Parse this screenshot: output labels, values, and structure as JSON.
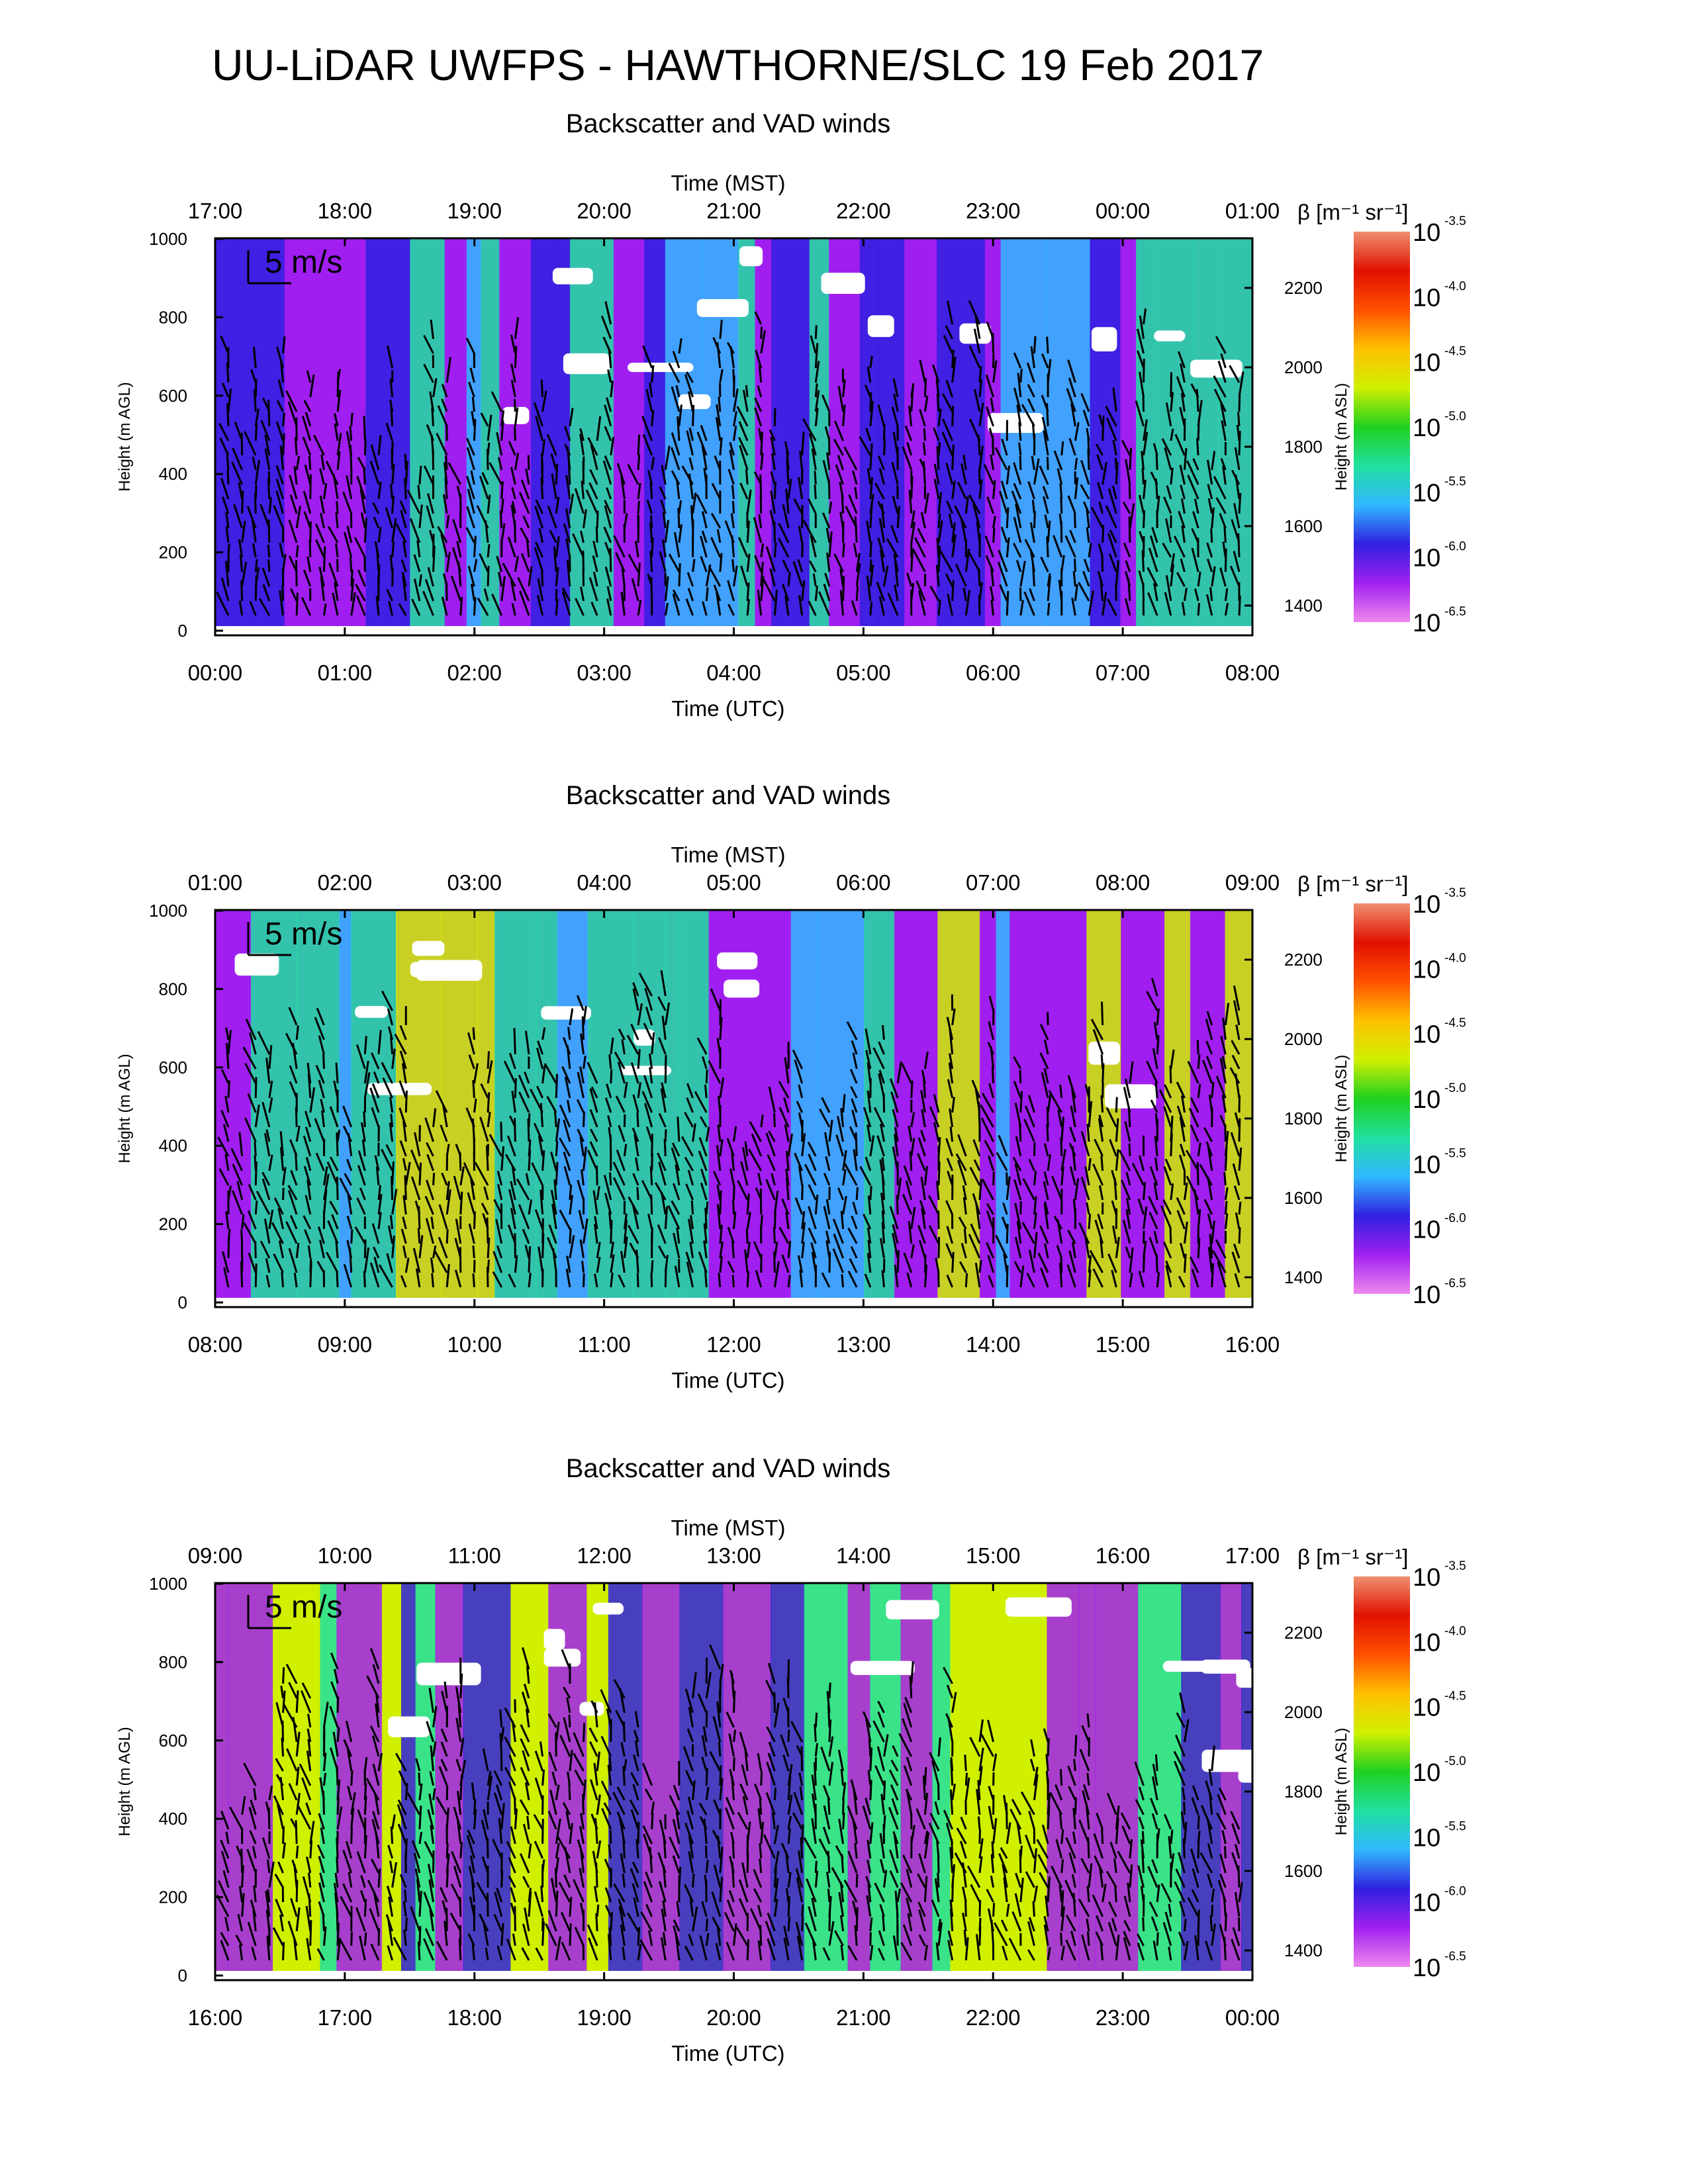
{
  "title": "UU-LiDAR UWFPS - HAWTHORNE/SLC 19 Feb 2017",
  "colors": {
    "scale": [
      "#ffffff",
      "#ee88ee",
      "#a020f0",
      "#3020e0",
      "#30b8ff",
      "#20e0a0",
      "#20d020",
      "#d0f000",
      "#ffc000",
      "#ff5000",
      "#e01000",
      "#f09070"
    ],
    "arrow": "#000000",
    "frame": "#000000"
  },
  "chart_data": [
    {
      "type": "heatmap",
      "title": "Backscatter and VAD winds",
      "xlabel_top": "Time (MST)",
      "xlabel_bottom": "Time (UTC)",
      "ylabel_left": "Height (m AGL)",
      "ylabel_right": "Height (m ASL)",
      "xticks_top": [
        "17:00",
        "18:00",
        "19:00",
        "20:00",
        "21:00",
        "22:00",
        "23:00",
        "00:00",
        "01:00"
      ],
      "xticks_bottom": [
        "00:00",
        "01:00",
        "02:00",
        "03:00",
        "04:00",
        "05:00",
        "06:00",
        "07:00",
        "08:00"
      ],
      "xlim_utc_hours": [
        0,
        8
      ],
      "ylim_agl_m": [
        0,
        1000
      ],
      "yticks_left": [
        "0",
        "200",
        "400",
        "600",
        "800",
        "1000"
      ],
      "yticks_right": [
        "1400",
        "1600",
        "1800",
        "2000",
        "2200"
      ],
      "wind_scale_label": "5 m/s",
      "dominant_levels": [
        "purple",
        "violet",
        "blue",
        "cyan"
      ],
      "colorbar": {
        "label": "β [m⁻¹ sr⁻¹]",
        "ticks": [
          {
            "base": "10",
            "exp": "-3.5"
          },
          {
            "base": "10",
            "exp": "-4.0"
          },
          {
            "base": "10",
            "exp": "-4.5"
          },
          {
            "base": "10",
            "exp": "-5.0"
          },
          {
            "base": "10",
            "exp": "-5.5"
          },
          {
            "base": "10",
            "exp": "-6.0"
          },
          {
            "base": "10",
            "exp": "-6.5"
          }
        ]
      }
    },
    {
      "type": "heatmap",
      "title": "Backscatter and VAD winds",
      "xlabel_top": "Time (MST)",
      "xlabel_bottom": "Time (UTC)",
      "ylabel_left": "Height (m AGL)",
      "ylabel_right": "Height (m ASL)",
      "xticks_top": [
        "01:00",
        "02:00",
        "03:00",
        "04:00",
        "05:00",
        "06:00",
        "07:00",
        "08:00",
        "09:00"
      ],
      "xticks_bottom": [
        "08:00",
        "09:00",
        "10:00",
        "11:00",
        "12:00",
        "13:00",
        "14:00",
        "15:00",
        "16:00"
      ],
      "xlim_utc_hours": [
        8,
        16
      ],
      "ylim_agl_m": [
        0,
        1000
      ],
      "yticks_left": [
        "0",
        "200",
        "400",
        "600",
        "800",
        "1000"
      ],
      "yticks_right": [
        "1400",
        "1600",
        "1800",
        "2000",
        "2200"
      ],
      "wind_scale_label": "5 m/s",
      "dominant_levels": [
        "purple",
        "blue",
        "cyan",
        "green"
      ],
      "colorbar": {
        "label": "β [m⁻¹ sr⁻¹]",
        "ticks": [
          {
            "base": "10",
            "exp": "-3.5"
          },
          {
            "base": "10",
            "exp": "-4.0"
          },
          {
            "base": "10",
            "exp": "-4.5"
          },
          {
            "base": "10",
            "exp": "-5.0"
          },
          {
            "base": "10",
            "exp": "-5.5"
          },
          {
            "base": "10",
            "exp": "-6.0"
          },
          {
            "base": "10",
            "exp": "-6.5"
          }
        ]
      }
    },
    {
      "type": "heatmap",
      "title": "Backscatter and VAD winds",
      "xlabel_top": "Time (MST)",
      "xlabel_bottom": "Time (UTC)",
      "ylabel_left": "Height (m AGL)",
      "ylabel_right": "Height (m ASL)",
      "xticks_top": [
        "09:00",
        "10:00",
        "11:00",
        "12:00",
        "13:00",
        "14:00",
        "15:00",
        "16:00",
        "17:00"
      ],
      "xticks_bottom": [
        "16:00",
        "17:00",
        "18:00",
        "19:00",
        "20:00",
        "21:00",
        "22:00",
        "23:00",
        "00:00"
      ],
      "xlim_utc_hours": [
        16,
        24
      ],
      "ylim_agl_m": [
        0,
        1000
      ],
      "yticks_left": [
        "0",
        "200",
        "400",
        "600",
        "800",
        "1000"
      ],
      "yticks_right": [
        "1400",
        "1600",
        "1800",
        "2000",
        "2200"
      ],
      "wind_scale_label": "5 m/s",
      "dominant_levels": [
        "green",
        "cyan",
        "purple",
        "violet"
      ],
      "colorbar": {
        "label": "β [m⁻¹ sr⁻¹]",
        "ticks": [
          {
            "base": "10",
            "exp": "-3.5"
          },
          {
            "base": "10",
            "exp": "-4.0"
          },
          {
            "base": "10",
            "exp": "-4.5"
          },
          {
            "base": "10",
            "exp": "-5.0"
          },
          {
            "base": "10",
            "exp": "-5.5"
          },
          {
            "base": "10",
            "exp": "-6.0"
          },
          {
            "base": "10",
            "exp": "-6.5"
          }
        ]
      }
    }
  ]
}
